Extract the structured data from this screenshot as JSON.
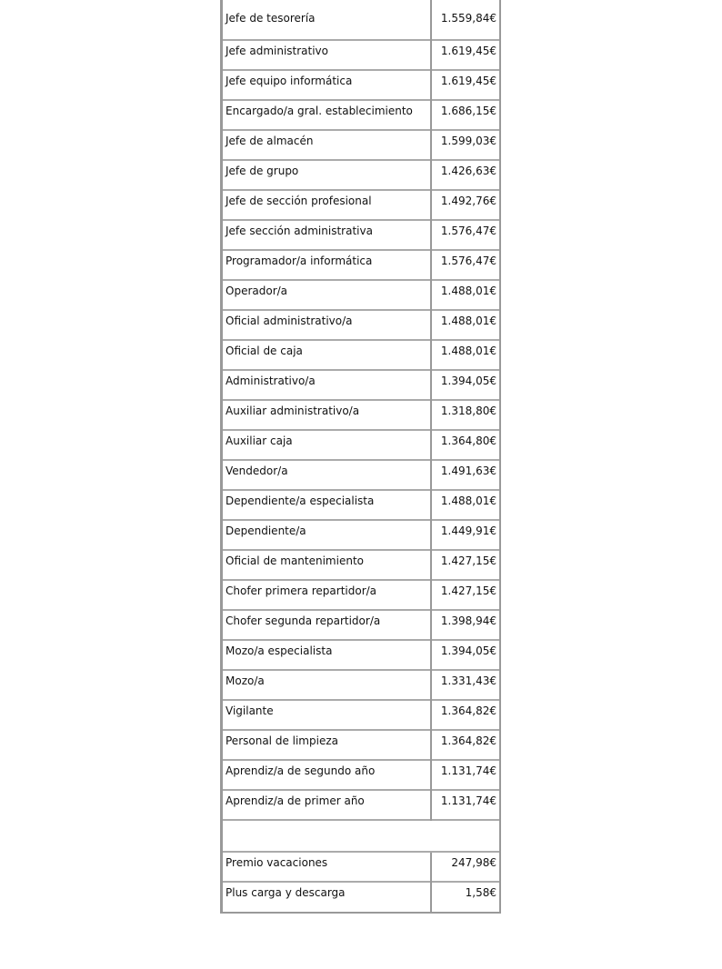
{
  "rows": [
    {
      "label": "Jefe de tesorería",
      "value": "1.559,84€"
    },
    {
      "label": "Jefe administrativo",
      "value": "1.619,45€"
    },
    {
      "label": "Jefe equipo informática",
      "value": "1.619,45€"
    },
    {
      "label": "Encargado/a gral. establecimiento",
      "value": "1.686,15€"
    },
    {
      "label": "Jefe de almacén",
      "value": "1.599,03€"
    },
    {
      "label": "Jefe de grupo",
      "value": "1.426,63€"
    },
    {
      "label": "Jefe de sección profesional",
      "value": "1.492,76€"
    },
    {
      "label": "Jefe sección administrativa",
      "value": "1.576,47€"
    },
    {
      "label": "Programador/a informática",
      "value": "1.576,47€"
    },
    {
      "label": "Operador/a",
      "value": "1.488,01€"
    },
    {
      "label": "Oficial administrativo/a",
      "value": "1.488,01€"
    },
    {
      "label": "Oficial de caja",
      "value": "1.488,01€"
    },
    {
      "label": "Administrativo/a",
      "value": "1.394,05€"
    },
    {
      "label": "Auxiliar administrativo/a",
      "value": "1.318,80€"
    },
    {
      "label": "Auxiliar caja",
      "value": "1.364,80€"
    },
    {
      "label": "Vendedor/a",
      "value": "1.491,63€"
    },
    {
      "label": "Dependiente/a especialista",
      "value": "1.488,01€"
    },
    {
      "label": "Dependiente/a",
      "value": "1.449,91€"
    },
    {
      "label": "Oficial de mantenimiento",
      "value": "1.427,15€"
    },
    {
      "label": "Chofer primera repartidor/a",
      "value": "1.427,15€"
    },
    {
      "label": "Chofer segunda repartidor/a",
      "value": "1.398,94€"
    },
    {
      "label": "Mozo/a especialista",
      "value": "1.394,05€"
    },
    {
      "label": "Mozo/a",
      "value": "1.331,43€"
    },
    {
      "label": "Vigilante",
      "value": "1.364,82€"
    },
    {
      "label": "Personal de limpieza",
      "value": "1.364,82€"
    },
    {
      "label": "Aprendiz/a de segundo año",
      "value": "1.131,74€"
    },
    {
      "label": "Aprendiz/a de primer año",
      "value": "1.131,74€"
    }
  ],
  "extras": [
    {
      "label": "Premio vacaciones",
      "value": "247,98€"
    },
    {
      "label": "Plus carga y descarga",
      "value": "1,58€"
    }
  ]
}
